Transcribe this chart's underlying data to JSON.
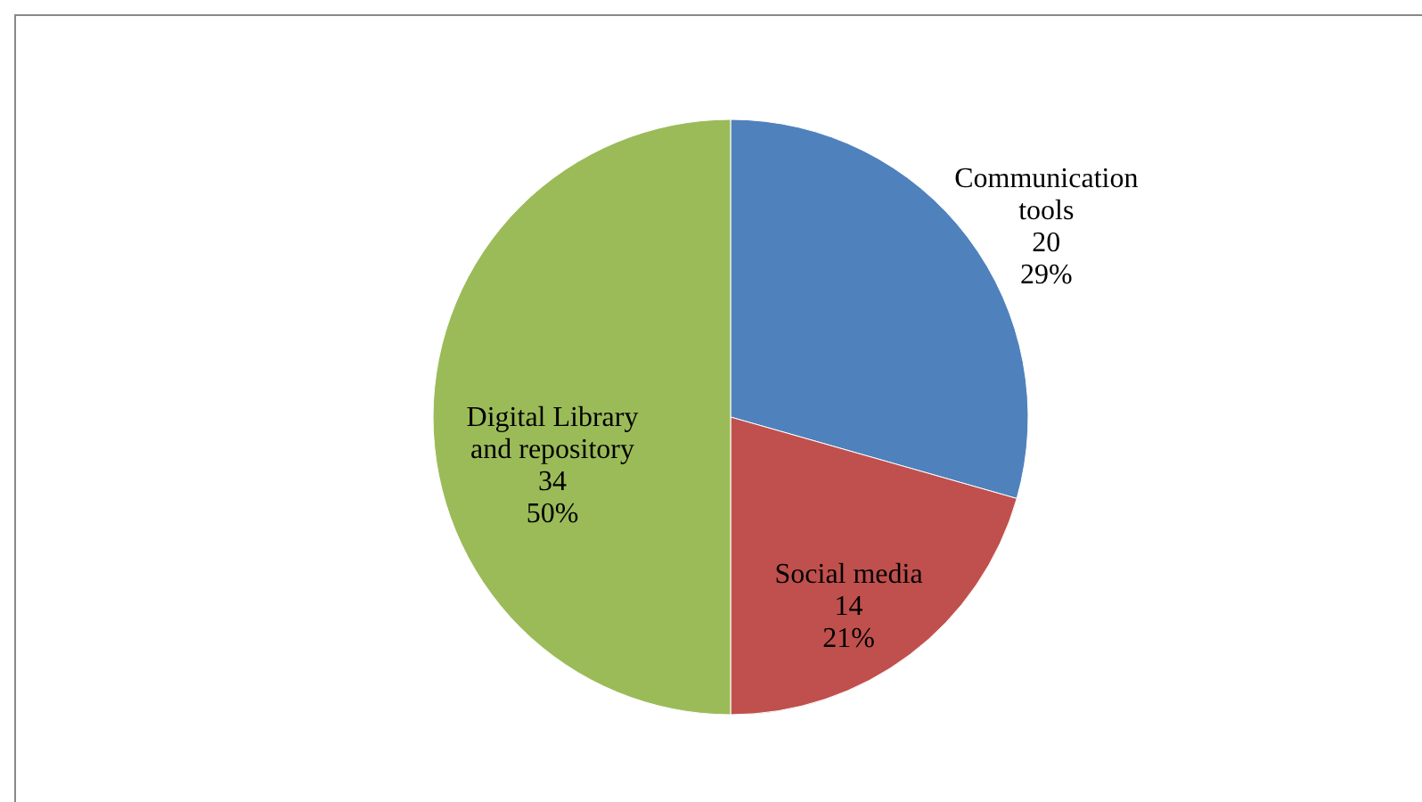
{
  "chart_data": {
    "type": "pie",
    "categories": [
      "Communication tools",
      "Social media",
      "Digital Library and repository"
    ],
    "values": [
      20,
      14,
      34
    ],
    "colors": [
      "#4f81bd",
      "#c0504d",
      "#9bbb59"
    ],
    "value_labels": [
      "20\n29%",
      "14\n21%",
      "34\n50%"
    ]
  }
}
